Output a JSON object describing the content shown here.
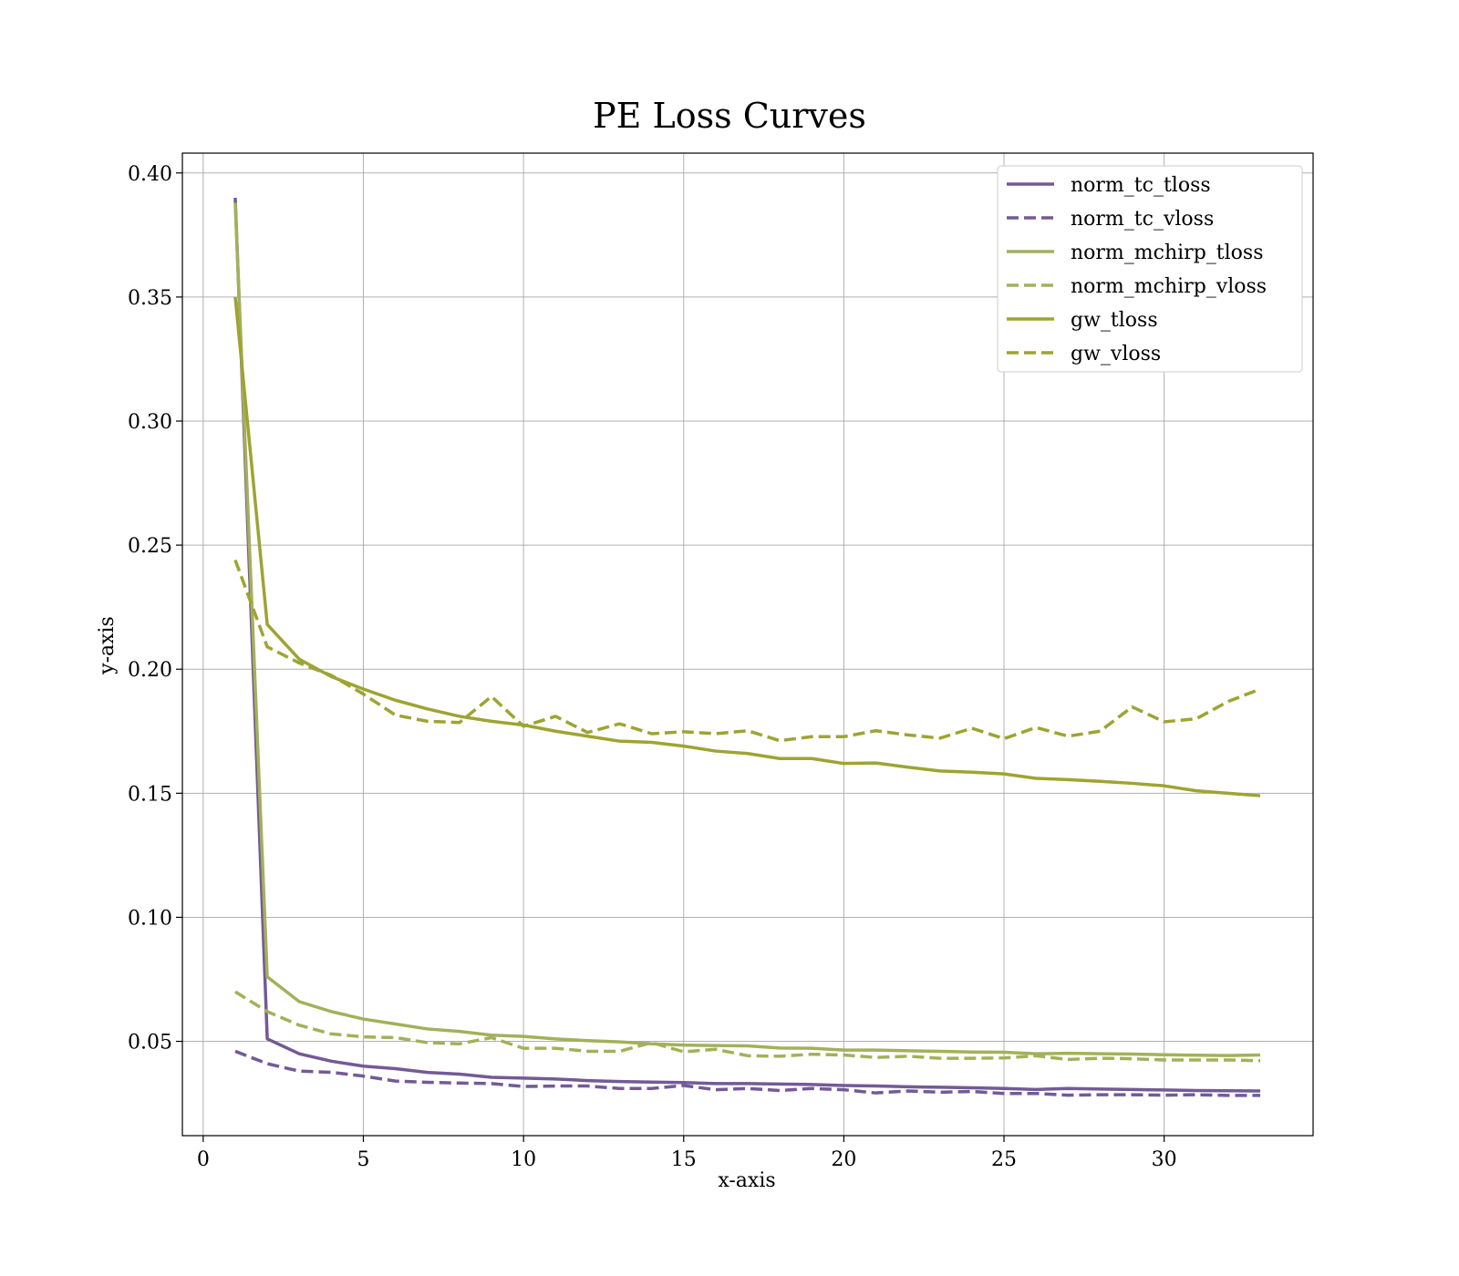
{
  "chart_data": {
    "type": "line",
    "title": "PE Loss Curves",
    "xlabel": "x-axis",
    "ylabel": "y-axis",
    "xlim": [
      -0.65,
      34.65
    ],
    "ylim": [
      0.012,
      0.408
    ],
    "xticks": [
      0,
      5,
      10,
      15,
      20,
      25,
      30
    ],
    "yticks": [
      0.05,
      0.1,
      0.15,
      0.2,
      0.25,
      0.3,
      0.35,
      0.4
    ],
    "xtick_labels": [
      "0",
      "5",
      "10",
      "15",
      "20",
      "25",
      "30"
    ],
    "ytick_labels": [
      "0.05",
      "0.10",
      "0.15",
      "0.20",
      "0.25",
      "0.30",
      "0.35",
      "0.40"
    ],
    "grid": true,
    "legend_position": "top-right",
    "x": [
      1,
      2,
      3,
      4,
      5,
      6,
      7,
      8,
      9,
      10,
      11,
      12,
      13,
      14,
      15,
      16,
      17,
      18,
      19,
      20,
      21,
      22,
      23,
      24,
      25,
      26,
      27,
      28,
      29,
      30,
      31,
      32,
      33
    ],
    "series": [
      {
        "name": "norm_tc_tloss",
        "color": "#735a96",
        "dash": "solid",
        "values": [
          0.39,
          0.051,
          0.045,
          0.042,
          0.04,
          0.039,
          0.0375,
          0.0368,
          0.0355,
          0.0352,
          0.0348,
          0.0342,
          0.0338,
          0.0336,
          0.0334,
          0.033,
          0.033,
          0.0328,
          0.0326,
          0.0322,
          0.032,
          0.0317,
          0.0315,
          0.0313,
          0.031,
          0.0306,
          0.031,
          0.0308,
          0.0306,
          0.0304,
          0.0302,
          0.0301,
          0.03
        ]
      },
      {
        "name": "norm_tc_vloss",
        "color": "#735a96",
        "dash": "dashed",
        "values": [
          0.046,
          0.041,
          0.038,
          0.0375,
          0.036,
          0.034,
          0.0335,
          0.0332,
          0.033,
          0.0318,
          0.032,
          0.032,
          0.031,
          0.031,
          0.0322,
          0.0305,
          0.031,
          0.0302,
          0.031,
          0.0305,
          0.0292,
          0.03,
          0.0295,
          0.0298,
          0.029,
          0.029,
          0.0283,
          0.0285,
          0.0285,
          0.0283,
          0.0285,
          0.0282,
          0.0282
        ]
      },
      {
        "name": "norm_mchirp_tloss",
        "color": "#a4b05a",
        "dash": "solid",
        "values": [
          0.388,
          0.076,
          0.066,
          0.062,
          0.059,
          0.057,
          0.055,
          0.054,
          0.0525,
          0.052,
          0.051,
          0.0503,
          0.0498,
          0.049,
          0.0485,
          0.0483,
          0.0482,
          0.0473,
          0.0472,
          0.0465,
          0.0465,
          0.0462,
          0.046,
          0.0457,
          0.0456,
          0.045,
          0.0452,
          0.045,
          0.0449,
          0.0446,
          0.0444,
          0.0443,
          0.0445
        ]
      },
      {
        "name": "norm_mchirp_vloss",
        "color": "#a4b05a",
        "dash": "dashed",
        "values": [
          0.07,
          0.062,
          0.0565,
          0.053,
          0.0518,
          0.0515,
          0.0495,
          0.049,
          0.0515,
          0.0472,
          0.0472,
          0.046,
          0.046,
          0.0495,
          0.0458,
          0.0468,
          0.0442,
          0.044,
          0.0448,
          0.0445,
          0.0435,
          0.044,
          0.0432,
          0.0432,
          0.0433,
          0.0442,
          0.0427,
          0.0432,
          0.043,
          0.0425,
          0.0425,
          0.0425,
          0.0422
        ]
      },
      {
        "name": "gw_tloss",
        "color": "#9da432",
        "dash": "solid",
        "values": [
          0.35,
          0.218,
          0.204,
          0.197,
          0.192,
          0.1875,
          0.184,
          0.181,
          0.179,
          0.1775,
          0.175,
          0.173,
          0.171,
          0.1705,
          0.169,
          0.167,
          0.166,
          0.164,
          0.164,
          0.162,
          0.1622,
          0.1605,
          0.159,
          0.1585,
          0.1578,
          0.156,
          0.1555,
          0.1548,
          0.154,
          0.153,
          0.151,
          0.15,
          0.149
        ]
      },
      {
        "name": "gw_vloss",
        "color": "#9da432",
        "dash": "dashed",
        "values": [
          0.244,
          0.209,
          0.2025,
          0.1975,
          0.19,
          0.1815,
          0.179,
          0.1785,
          0.189,
          0.177,
          0.181,
          0.1745,
          0.178,
          0.174,
          0.1748,
          0.174,
          0.1752,
          0.1712,
          0.1728,
          0.1728,
          0.1752,
          0.1735,
          0.1722,
          0.1762,
          0.172,
          0.1765,
          0.173,
          0.175,
          0.1848,
          0.1788,
          0.18,
          0.187,
          0.192
        ]
      }
    ]
  }
}
